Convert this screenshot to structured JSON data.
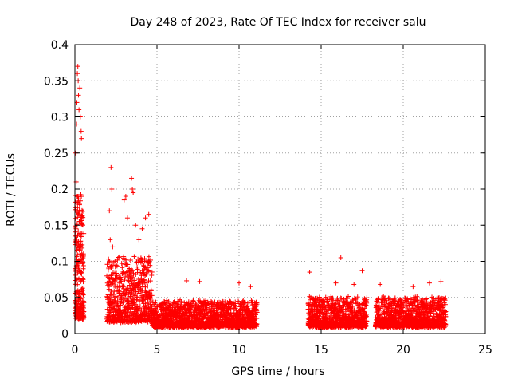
{
  "chart_data": {
    "type": "scatter",
    "title": "Day 248 of 2023, Rate Of TEC Index for receiver salu",
    "xlabel": "GPS time / hours",
    "ylabel": "ROTI / TECUs",
    "xlim": [
      0,
      25
    ],
    "ylim": [
      0,
      0.4
    ],
    "xticks": [
      0,
      5,
      10,
      15,
      20,
      25
    ],
    "yticks": [
      0,
      0.05,
      0.1,
      0.15,
      0.2,
      0.25,
      0.3,
      0.35,
      0.4
    ],
    "ytick_labels": [
      "0",
      "0.05",
      "0.1",
      "0.15",
      "0.2",
      "0.25",
      "0.3",
      "0.35",
      "0.4"
    ],
    "grid": true,
    "marker": "+",
    "color": "#ff0000",
    "segments": [
      {
        "start": 0.0,
        "end": 0.55,
        "base": 0.02,
        "spread": 0.17,
        "step": 0.006
      },
      {
        "start": 1.95,
        "end": 4.7,
        "base": 0.015,
        "spread": 0.09,
        "step": 0.012
      },
      {
        "start": 4.7,
        "end": 11.1,
        "base": 0.008,
        "spread": 0.035,
        "step": 0.012
      },
      {
        "start": 14.2,
        "end": 17.8,
        "base": 0.008,
        "spread": 0.04,
        "step": 0.012
      },
      {
        "start": 18.3,
        "end": 22.6,
        "base": 0.008,
        "spread": 0.04,
        "step": 0.012
      }
    ],
    "highlights": [
      [
        0.05,
        0.25
      ],
      [
        0.1,
        0.29
      ],
      [
        0.12,
        0.32
      ],
      [
        0.15,
        0.36
      ],
      [
        0.18,
        0.37
      ],
      [
        0.2,
        0.35
      ],
      [
        0.22,
        0.33
      ],
      [
        0.25,
        0.31
      ],
      [
        0.3,
        0.34
      ],
      [
        0.33,
        0.3
      ],
      [
        0.38,
        0.28
      ],
      [
        0.4,
        0.27
      ],
      [
        0.08,
        0.21
      ],
      [
        0.14,
        0.19
      ],
      [
        0.28,
        0.18
      ],
      [
        2.2,
        0.23
      ],
      [
        2.25,
        0.2
      ],
      [
        2.1,
        0.17
      ],
      [
        2.15,
        0.13
      ],
      [
        2.3,
        0.12
      ],
      [
        3.0,
        0.185
      ],
      [
        3.1,
        0.19
      ],
      [
        3.45,
        0.215
      ],
      [
        3.5,
        0.2
      ],
      [
        3.55,
        0.195
      ],
      [
        3.2,
        0.16
      ],
      [
        3.7,
        0.15
      ],
      [
        4.3,
        0.16
      ],
      [
        4.5,
        0.165
      ],
      [
        3.9,
        0.13
      ],
      [
        4.1,
        0.145
      ],
      [
        14.3,
        0.085
      ],
      [
        16.2,
        0.105
      ],
      [
        17.5,
        0.087
      ],
      [
        15.9,
        0.07
      ],
      [
        17.0,
        0.068
      ],
      [
        18.6,
        0.068
      ],
      [
        21.6,
        0.07
      ],
      [
        22.3,
        0.072
      ],
      [
        20.6,
        0.065
      ],
      [
        6.8,
        0.073
      ],
      [
        7.6,
        0.072
      ],
      [
        10.0,
        0.07
      ],
      [
        10.7,
        0.065
      ]
    ]
  }
}
